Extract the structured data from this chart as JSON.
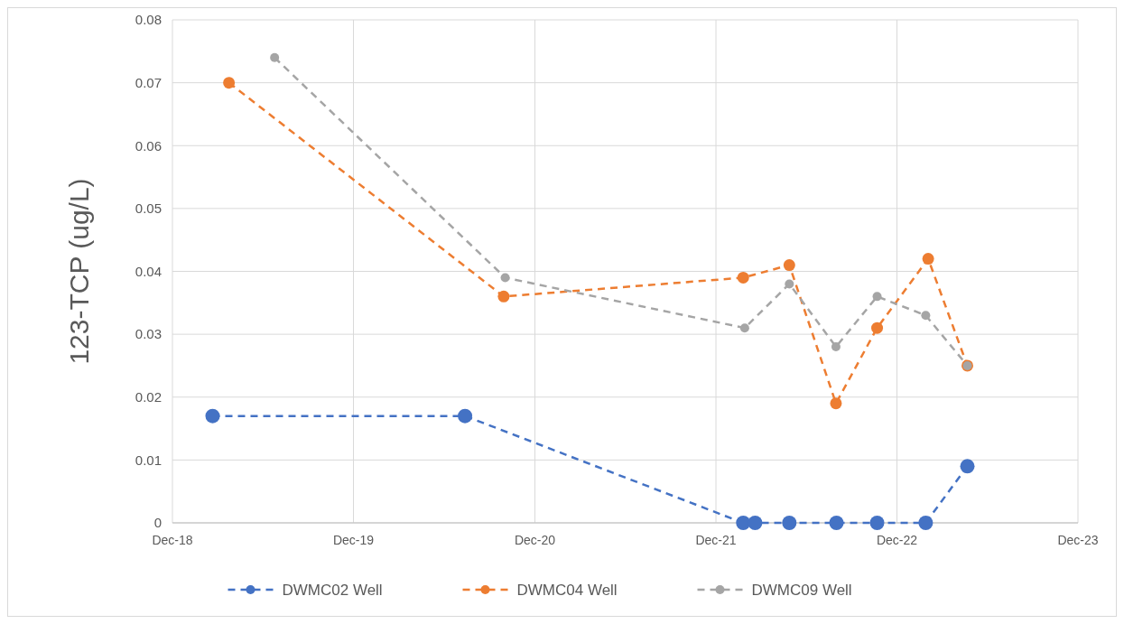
{
  "chart_data": {
    "type": "line",
    "ylabel": "123-TCP (ug/L)",
    "xlim": [
      "2018-12-01",
      "2023-12-01"
    ],
    "xticks": [
      {
        "value": "2018-12-01",
        "label": "Dec-18"
      },
      {
        "value": "2019-12-01",
        "label": "Dec-19"
      },
      {
        "value": "2020-12-01",
        "label": "Dec-20"
      },
      {
        "value": "2021-12-01",
        "label": "Dec-21"
      },
      {
        "value": "2022-12-01",
        "label": "Dec-22"
      },
      {
        "value": "2023-12-01",
        "label": "Dec-23"
      }
    ],
    "ylim": [
      0,
      0.08
    ],
    "yticks": [
      0,
      0.01,
      0.02,
      0.03,
      0.04,
      0.05,
      0.06,
      0.07,
      0.08
    ],
    "grid": true,
    "legend": "bottom",
    "marker": "circle",
    "line_style": "dashed",
    "series": [
      {
        "name": "DWMC02 Well",
        "color": "#4472c4",
        "x": [
          "2019-02-20",
          "2020-07-13",
          "2022-01-25",
          "2022-02-18",
          "2022-04-28",
          "2022-08-01",
          "2022-10-22",
          "2023-01-28",
          "2023-04-22"
        ],
        "values": [
          0.017,
          0.017,
          0,
          0,
          0,
          0,
          0,
          0,
          0.009
        ]
      },
      {
        "name": "DWMC04 Well",
        "color": "#ed7d31",
        "x": [
          "2019-03-25",
          "2020-09-29",
          "2022-01-25",
          "2022-04-28",
          "2022-07-31",
          "2022-10-22",
          "2023-02-02",
          "2023-04-22"
        ],
        "values": [
          0.07,
          0.036,
          0.039,
          0.041,
          0.019,
          0.031,
          0.042,
          0.025
        ]
      },
      {
        "name": "DWMC09 Well",
        "color": "#a5a5a5",
        "x": [
          "2019-06-25",
          "2020-10-02",
          "2022-01-28",
          "2022-04-28",
          "2022-07-31",
          "2022-10-22",
          "2023-01-28",
          "2023-04-22"
        ],
        "values": [
          0.074,
          0.039,
          0.031,
          0.038,
          0.028,
          0.036,
          0.033,
          0.025
        ]
      }
    ]
  }
}
